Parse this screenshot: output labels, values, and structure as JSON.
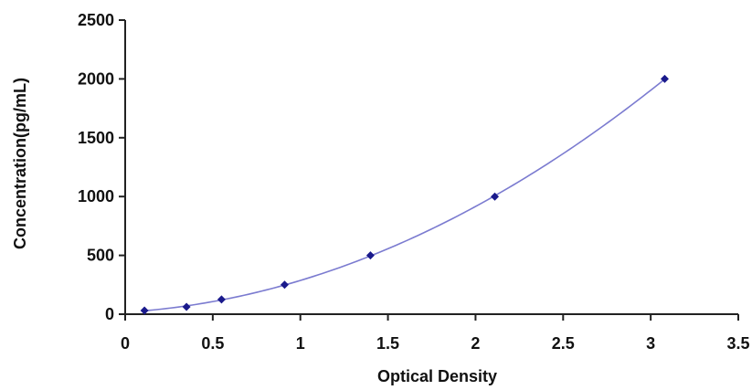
{
  "chart_data": {
    "type": "scatter",
    "title": "",
    "xlabel": "Optical Density",
    "ylabel": "Concentration(pg/mL)",
    "xlim": [
      0,
      3.5
    ],
    "ylim": [
      0,
      2500
    ],
    "x_ticks": [
      0,
      0.5,
      1,
      1.5,
      2,
      2.5,
      3,
      3.5
    ],
    "x_tick_labels": [
      "0",
      "0.5",
      "1",
      "1.5",
      "2",
      "2.5",
      "3",
      "3.5"
    ],
    "y_ticks": [
      0,
      500,
      1000,
      1500,
      2000,
      2500
    ],
    "y_tick_labels": [
      "0",
      "500",
      "1000",
      "1500",
      "2000",
      "2500"
    ],
    "grid": false,
    "legend": "none",
    "series": [
      {
        "x": [
          0.11,
          0.35,
          0.55,
          0.91,
          1.4,
          2.11,
          3.08
        ],
        "y": [
          31.2,
          62.5,
          125,
          250,
          500,
          1000,
          2000
        ],
        "marker": "diamond",
        "trendline": "polynomial"
      }
    ],
    "colors": {
      "points": "#1a1a8c",
      "curve": "#7b7bd0",
      "axis": "#222222"
    }
  }
}
